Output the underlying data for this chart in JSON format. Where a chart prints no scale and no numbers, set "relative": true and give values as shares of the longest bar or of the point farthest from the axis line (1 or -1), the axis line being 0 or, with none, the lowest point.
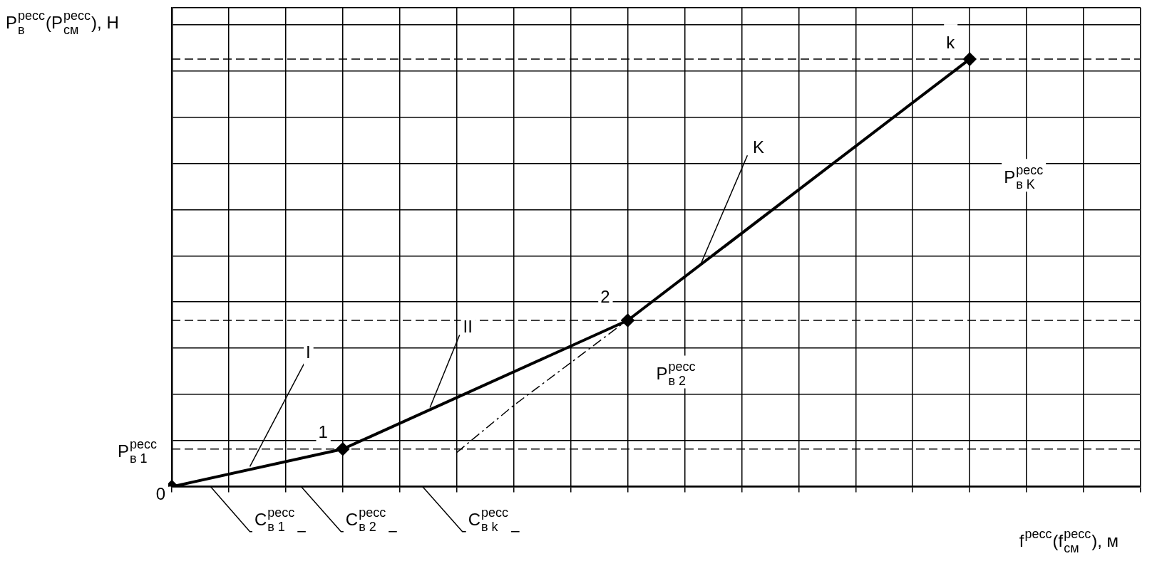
{
  "chart_data": {
    "type": "line",
    "relative": true,
    "ylabel": "P$_{в}$$^{ресс}$(P$_{см}$$^{ресс}$), Н",
    "xlabel": "f$^{ресс}$(f$_{см}$$^{ресс}$), м",
    "categories": [
      null,
      null,
      null,
      null,
      null,
      null,
      null,
      null,
      null,
      null,
      null,
      null,
      null,
      null,
      null,
      null,
      null,
      null
    ],
    "series": [
      {
        "color": "#000000",
        "marker": "diamond",
        "line_style": "solid",
        "values": [
          0,
          null,
          null,
          0.088,
          null,
          null,
          null,
          null,
          0.389,
          null,
          null,
          null,
          null,
          null,
          1.0,
          null,
          null,
          null
        ]
      },
      {
        "color": "#000000",
        "marker": "none",
        "line_style": "dashed",
        "values": [
          null,
          null,
          null,
          null,
          null,
          0.08,
          0.19,
          0.29,
          0.39,
          null,
          null,
          null,
          null,
          null,
          null,
          null,
          null,
          null
        ]
      }
    ],
    "ref_lines": [
      {
        "axis": "y",
        "value": 0.088,
        "line_style": "dashed"
      },
      {
        "axis": "y",
        "value": 0.389,
        "line_style": "dashed"
      },
      {
        "axis": "y",
        "value": 1.0,
        "line_style": "dashed"
      }
    ],
    "annotations": [
      "0",
      "1",
      "2",
      "k",
      "I",
      "II",
      "K",
      "P$_{в 1}$$^{ресс}$",
      "P$_{в 2}$$^{ресс}$",
      "P$_{в K}$$^{ресс}$",
      "C$_{в 1}$$^{ресс}$",
      "C$_{в 2}$$^{ресс}$",
      "C$_{в k}$$^{ресс}$"
    ],
    "grid": true,
    "legend": false
  }
}
